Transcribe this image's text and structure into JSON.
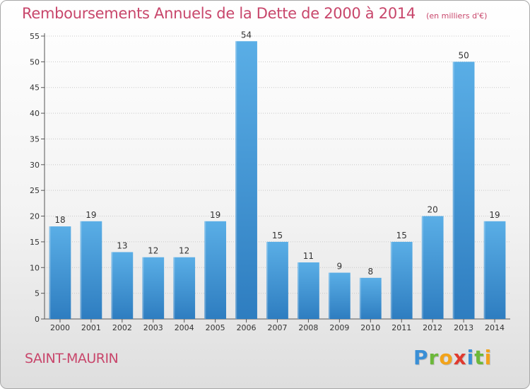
{
  "title": "Remboursements Annuels de la Dette de 2000 à 2014",
  "unit": "(en milliers d'€)",
  "commune": "SAINT-MAURIN",
  "brand": {
    "letters": [
      {
        "char": "P",
        "color": "#3a8fd6"
      },
      {
        "char": "r",
        "color": "#6cb83a"
      },
      {
        "char": "o",
        "color": "#f2a31a"
      },
      {
        "char": "x",
        "color": "#e03a2f"
      },
      {
        "char": "i",
        "color": "#3a8fd6"
      },
      {
        "char": "t",
        "color": "#6cb83a"
      },
      {
        "char": "i",
        "color": "#f2a31a"
      }
    ]
  },
  "colors": {
    "title": "#c8466b",
    "bar_top": "#5aaee6",
    "bar_bottom": "#2e7dc0",
    "grid": "#c8c8c8"
  },
  "chart_data": {
    "type": "bar",
    "categories": [
      "2000",
      "2001",
      "2002",
      "2003",
      "2004",
      "2005",
      "2006",
      "2007",
      "2008",
      "2009",
      "2010",
      "2011",
      "2012",
      "2013",
      "2014"
    ],
    "values": [
      18,
      19,
      13,
      12,
      12,
      19,
      54,
      15,
      11,
      9,
      8,
      15,
      20,
      50,
      19
    ],
    "ylim": [
      0,
      55
    ],
    "yticks": [
      0,
      5,
      10,
      15,
      20,
      25,
      30,
      35,
      40,
      45,
      50,
      55
    ],
    "grid": true,
    "title": "Remboursements Annuels de la Dette de 2000 à 2014",
    "xlabel": "",
    "ylabel": ""
  }
}
